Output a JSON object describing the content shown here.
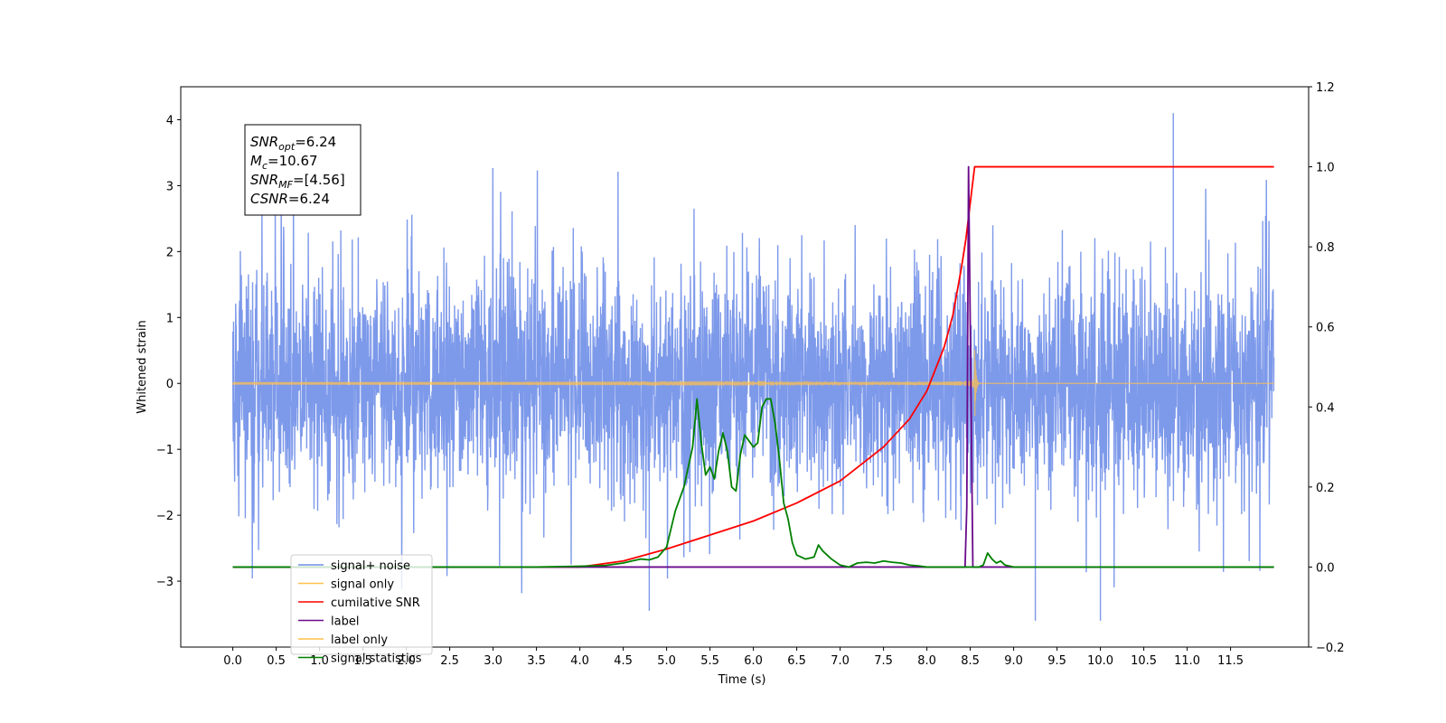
{
  "chart_data": {
    "type": "line",
    "title": "",
    "xlabel": "Time (s)",
    "ylabel": "Whitened strain",
    "ylabel_right": "",
    "xlim": [
      -0.6,
      12.4
    ],
    "ylim": [
      -4.0,
      4.5
    ],
    "ylim_right": [
      -0.2,
      1.2
    ],
    "x_ticks": [
      "0.0",
      "0.5",
      "1.0",
      "1.5",
      "2.0",
      "2.5",
      "3.0",
      "3.5",
      "4.0",
      "4.5",
      "5.0",
      "5.5",
      "6.0",
      "6.5",
      "7.0",
      "7.5",
      "8.0",
      "8.5",
      "9.0",
      "9.5",
      "10.0",
      "10.5",
      "11.0",
      "11.5"
    ],
    "y_ticks_left": [
      "4",
      "3",
      "2",
      "1",
      "0",
      "−1",
      "−2",
      "−3"
    ],
    "y_ticks_right": [
      "1.2",
      "1.0",
      "0.8",
      "0.6",
      "0.4",
      "0.2",
      "0.0",
      "−0.2"
    ],
    "grid": false,
    "legend_position": "lower-left",
    "annotation": {
      "lines": [
        {
          "sym": "SNR",
          "sub": "opt",
          "value": "=6.24"
        },
        {
          "sym": "M",
          "sub": "c",
          "value": "=10.67"
        },
        {
          "sym": "SNR",
          "sub": "MF",
          "value": "=[4.56]"
        },
        {
          "sym": "CSNR",
          "sub": "",
          "value": "=6.24"
        }
      ]
    },
    "series": [
      {
        "name": "signal+ noise",
        "color": "#6f8ee8",
        "axis": "left",
        "kind": "noise",
        "x_range": [
          0.0,
          12.0
        ],
        "y_typical_range": [
          -2.2,
          2.2
        ],
        "y_extremes": [
          -3.6,
          4.1
        ]
      },
      {
        "name": "signal only",
        "color": "#ffc04d",
        "axis": "left",
        "kind": "chirp",
        "x_range": [
          0.0,
          12.0
        ],
        "merger_time": 8.55,
        "peak_amplitude": 0.65
      },
      {
        "name": "cumilative SNR",
        "color": "#ff0000",
        "axis": "right",
        "x": [
          0.0,
          4.0,
          4.5,
          5.0,
          5.5,
          6.0,
          6.5,
          7.0,
          7.5,
          7.8,
          8.0,
          8.2,
          8.3,
          8.4,
          8.45,
          8.5,
          8.55,
          12.0
        ],
        "y": [
          0.0,
          0.0,
          0.015,
          0.045,
          0.08,
          0.115,
          0.16,
          0.215,
          0.3,
          0.37,
          0.44,
          0.55,
          0.63,
          0.75,
          0.82,
          0.91,
          1.0,
          1.0
        ]
      },
      {
        "name": "label",
        "color": "#6a0a8a",
        "axis": "right",
        "x": [
          0.0,
          8.4,
          8.44,
          8.46,
          8.48,
          8.5,
          8.53,
          12.0
        ],
        "y": [
          0.0,
          0.0,
          0.0,
          0.15,
          1.0,
          0.6,
          0.0,
          0.0
        ]
      },
      {
        "name": "label only",
        "color": "#ffc04d",
        "axis": "right",
        "hidden_in_plot": true,
        "x": [],
        "y": []
      },
      {
        "name": "signal statistics",
        "color": "#008000",
        "axis": "right",
        "x": [
          0.0,
          3.5,
          4.0,
          4.3,
          4.5,
          4.6,
          4.7,
          4.8,
          4.9,
          5.0,
          5.1,
          5.2,
          5.25,
          5.3,
          5.35,
          5.4,
          5.45,
          5.5,
          5.55,
          5.6,
          5.65,
          5.7,
          5.75,
          5.8,
          5.85,
          5.9,
          6.0,
          6.05,
          6.1,
          6.15,
          6.2,
          6.25,
          6.3,
          6.35,
          6.4,
          6.45,
          6.5,
          6.6,
          6.7,
          6.75,
          6.8,
          6.9,
          7.0,
          7.1,
          7.2,
          7.3,
          7.4,
          7.5,
          7.6,
          7.7,
          7.8,
          7.9,
          8.0,
          8.2,
          8.4,
          8.55,
          8.6,
          8.65,
          8.7,
          8.75,
          8.8,
          8.85,
          8.9,
          9.0,
          9.1,
          9.2,
          12.0
        ],
        "y": [
          0.0,
          0.0,
          0.002,
          0.004,
          0.01,
          0.015,
          0.02,
          0.018,
          0.025,
          0.05,
          0.14,
          0.2,
          0.25,
          0.3,
          0.42,
          0.31,
          0.23,
          0.25,
          0.22,
          0.29,
          0.335,
          0.29,
          0.2,
          0.19,
          0.28,
          0.33,
          0.3,
          0.31,
          0.4,
          0.42,
          0.42,
          0.36,
          0.27,
          0.16,
          0.12,
          0.06,
          0.03,
          0.02,
          0.025,
          0.055,
          0.04,
          0.02,
          0.005,
          0.0,
          0.01,
          0.012,
          0.01,
          0.015,
          0.012,
          0.01,
          0.005,
          0.003,
          0.0,
          0.0,
          0.0,
          0.0,
          0.0,
          0.005,
          0.035,
          0.02,
          0.01,
          0.015,
          0.005,
          0.0,
          0.0,
          0.0,
          0.0
        ]
      }
    ]
  }
}
